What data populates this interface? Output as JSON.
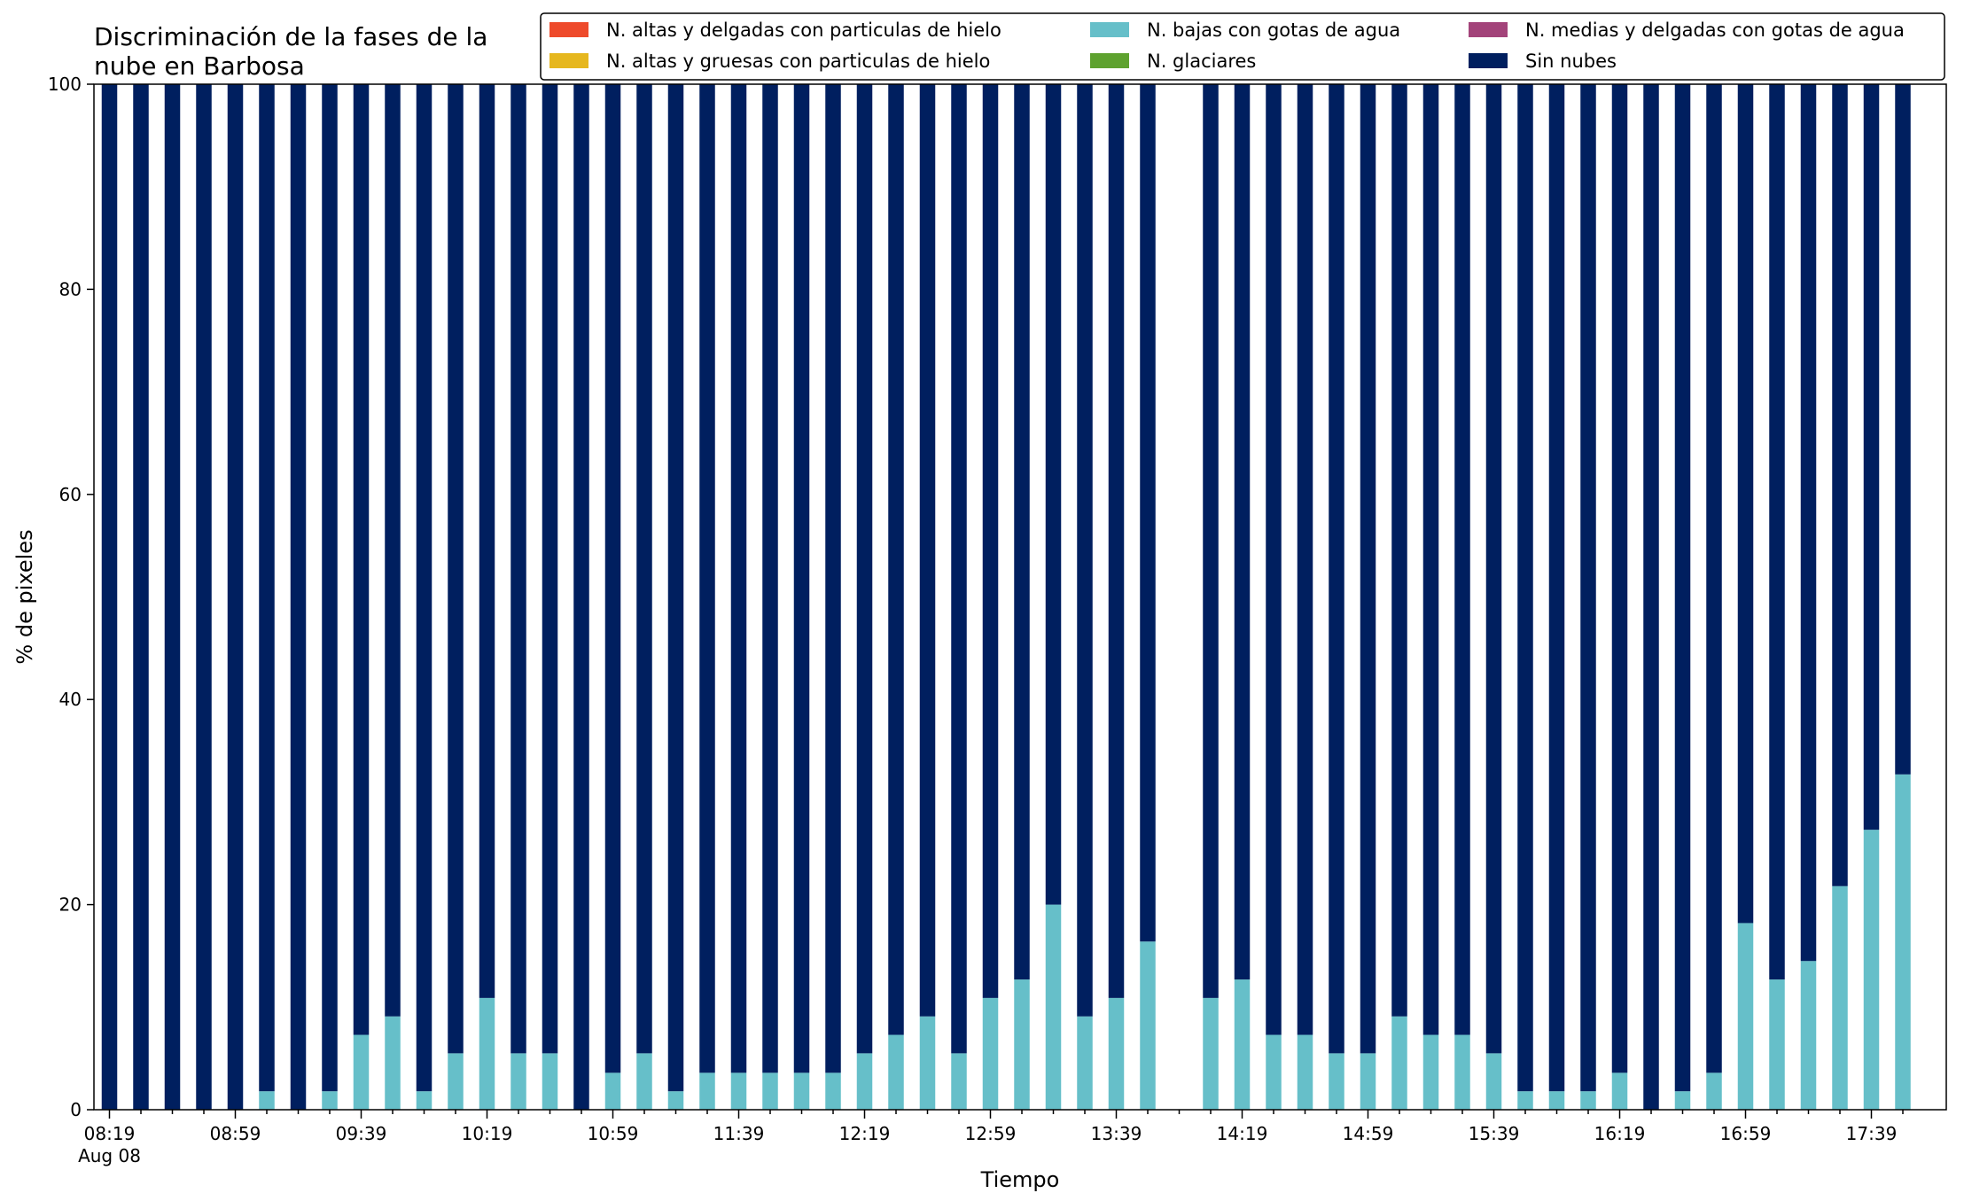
{
  "chart_data": {
    "type": "bar",
    "stacked": true,
    "title_lines": [
      "Discriminación de la fases de la",
      "nube en Barbosa"
    ],
    "xlabel": "Tiempo",
    "ylabel": "% de pixeles",
    "ylim": [
      0,
      100
    ],
    "yticks": [
      0,
      20,
      40,
      60,
      80,
      100
    ],
    "xtick_labels": [
      "08:19",
      "08:59",
      "09:39",
      "10:19",
      "10:59",
      "11:39",
      "12:19",
      "12:59",
      "13:39",
      "14:19",
      "14:59",
      "15:39",
      "16:19",
      "16:59",
      "17:39"
    ],
    "xtick_sublabel": "Aug 08",
    "grid": false,
    "legend_position": "top-right",
    "categories": [
      "08:19",
      "08:29",
      "08:39",
      "08:49",
      "08:59",
      "09:09",
      "09:19",
      "09:29",
      "09:39",
      "09:49",
      "09:59",
      "10:09",
      "10:19",
      "10:29",
      "10:39",
      "10:49",
      "10:59",
      "11:09",
      "11:19",
      "11:29",
      "11:39",
      "11:49",
      "11:59",
      "12:09",
      "12:19",
      "12:29",
      "12:39",
      "12:49",
      "12:59",
      "13:09",
      "13:19",
      "13:29",
      "13:39",
      "13:49",
      "13:59",
      "14:09",
      "14:19",
      "14:29",
      "14:39",
      "14:49",
      "14:59",
      "15:09",
      "15:19",
      "15:29",
      "15:39",
      "15:49",
      "15:59",
      "16:09",
      "16:19",
      "16:29",
      "16:39",
      "16:49",
      "16:59",
      "17:09",
      "17:19",
      "17:29",
      "17:39",
      "17:49"
    ],
    "series": [
      {
        "name": "N. altas y delgadas con particulas de hielo",
        "color": "#ee4a2b",
        "values": [
          0,
          0,
          0,
          0,
          0,
          0,
          0,
          0,
          0,
          0,
          0,
          0,
          0,
          0,
          0,
          0,
          0,
          0,
          0,
          0,
          0,
          0,
          0,
          0,
          0,
          0,
          0,
          0,
          0,
          0,
          0,
          0,
          0,
          null,
          0,
          0,
          0,
          0,
          0,
          0,
          0,
          0,
          0,
          0,
          0,
          0,
          0,
          0,
          0,
          0,
          0,
          0,
          0,
          0,
          0,
          0,
          0,
          0
        ]
      },
      {
        "name": "N. altas y gruesas con particulas de hielo",
        "color": "#e6b71e",
        "values": [
          0,
          0,
          0,
          0,
          0,
          0,
          0,
          0,
          0,
          0,
          0,
          0,
          0,
          0,
          0,
          0,
          0,
          0,
          0,
          0,
          0,
          0,
          0,
          0,
          0,
          0,
          0,
          0,
          0,
          0,
          0,
          0,
          0,
          null,
          0,
          0,
          0,
          0,
          0,
          0,
          0,
          0,
          0,
          0,
          0,
          0,
          0,
          0,
          0,
          0,
          0,
          0,
          0,
          0,
          0,
          0,
          0,
          0
        ]
      },
      {
        "name": "N. bajas con gotas de agua",
        "color": "#66bfc9",
        "values": [
          0,
          0,
          0,
          0,
          0,
          1.8,
          0,
          1.8,
          7.3,
          9.1,
          1.8,
          5.5,
          10.9,
          5.5,
          5.5,
          0,
          3.6,
          5.5,
          1.8,
          3.6,
          3.6,
          3.6,
          3.6,
          3.6,
          5.5,
          7.3,
          9.1,
          5.5,
          10.9,
          12.7,
          20.0,
          9.1,
          10.9,
          16.4,
          null,
          10.9,
          12.7,
          7.3,
          7.3,
          5.5,
          5.5,
          9.1,
          7.3,
          7.3,
          5.5,
          1.8,
          1.8,
          1.8,
          3.6,
          0,
          1.8,
          3.6,
          18.2,
          12.7,
          14.5,
          21.8,
          27.3,
          32.7
        ]
      },
      {
        "name": "N. glaciares",
        "color": "#5ea22f",
        "values": [
          0,
          0,
          0,
          0,
          0,
          0,
          0,
          0,
          0,
          0,
          0,
          0,
          0,
          0,
          0,
          0,
          0,
          0,
          0,
          0,
          0,
          0,
          0,
          0,
          0,
          0,
          0,
          0,
          0,
          0,
          0,
          0,
          0,
          null,
          0,
          0,
          0,
          0,
          0,
          0,
          0,
          0,
          0,
          0,
          0,
          0,
          0,
          0,
          0,
          0,
          0,
          0,
          0,
          0,
          0,
          0,
          0,
          0
        ]
      },
      {
        "name": "N. medias y delgadas con gotas de agua",
        "color": "#a3437a",
        "values": [
          0,
          0,
          0,
          0,
          0,
          0,
          0,
          0,
          0,
          0,
          0,
          0,
          0,
          0,
          0,
          0,
          0,
          0,
          0,
          0,
          0,
          0,
          0,
          0,
          0,
          0,
          0,
          0,
          0,
          0,
          0,
          0,
          0,
          null,
          0,
          0,
          0,
          0,
          0,
          0,
          0,
          0,
          0,
          0,
          0,
          0,
          0,
          0,
          0,
          0,
          0,
          0,
          0,
          0,
          0,
          0,
          0,
          0
        ]
      },
      {
        "name": "Sin nubes",
        "color": "#001f5f",
        "values": [
          100,
          100,
          100,
          100,
          100,
          98.2,
          100,
          98.2,
          92.7,
          90.9,
          98.2,
          94.5,
          89.1,
          94.5,
          94.5,
          100,
          96.4,
          94.5,
          98.2,
          96.4,
          96.4,
          96.4,
          96.4,
          96.4,
          94.5,
          92.7,
          90.9,
          94.5,
          89.1,
          87.3,
          80.0,
          90.9,
          89.1,
          83.6,
          null,
          89.1,
          87.3,
          92.7,
          92.7,
          94.5,
          94.5,
          90.9,
          92.7,
          92.7,
          94.5,
          98.2,
          98.2,
          98.2,
          96.4,
          100,
          98.2,
          96.4,
          81.8,
          87.3,
          85.5,
          78.2,
          72.7,
          67.3
        ]
      }
    ]
  }
}
